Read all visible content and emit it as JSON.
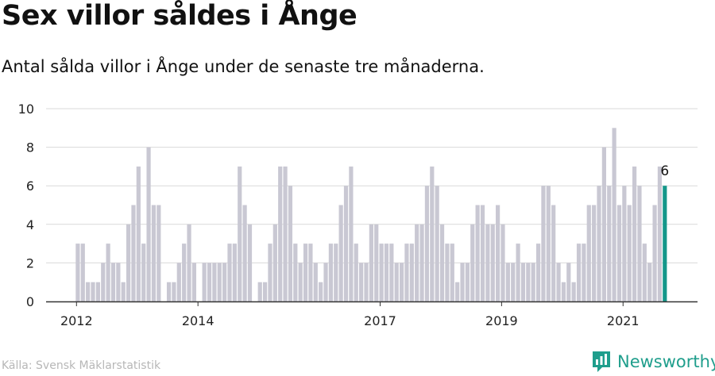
{
  "header": {
    "title": "Sex villor såldes i Ånge",
    "subtitle": "Antal sålda villor i Ånge under de senaste tre månaderna."
  },
  "footer": {
    "source": "Källa: Svensk Mäklarstatistik",
    "brand": "Newsworthy",
    "brand_icon": "newsworthy-logo-icon"
  },
  "colors": {
    "bar": "#c9c8d3",
    "highlight": "#14978a",
    "grid": "#d9d9d9",
    "axis": "#333333",
    "brand": "#1f9e8c"
  },
  "chart_data": {
    "type": "bar",
    "title": "Sex villor såldes i Ånge",
    "ylim": [
      0,
      10
    ],
    "y_ticks": [
      0,
      2,
      4,
      6,
      8,
      10
    ],
    "x_tick_labels": [
      {
        "label": "2012",
        "index": 0
      },
      {
        "label": "2014",
        "index": 24
      },
      {
        "label": "2017",
        "index": 60
      },
      {
        "label": "2019",
        "index": 84
      },
      {
        "label": "2021",
        "index": 108
      }
    ],
    "values": [
      3,
      3,
      1,
      1,
      1,
      2,
      3,
      2,
      2,
      1,
      4,
      5,
      7,
      3,
      8,
      5,
      5,
      0,
      1,
      1,
      2,
      3,
      4,
      2,
      0,
      2,
      2,
      2,
      2,
      2,
      3,
      3,
      7,
      5,
      4,
      0,
      1,
      1,
      3,
      4,
      7,
      7,
      6,
      3,
      2,
      3,
      3,
      2,
      1,
      2,
      3,
      3,
      5,
      6,
      7,
      3,
      2,
      2,
      4,
      4,
      3,
      3,
      3,
      2,
      2,
      3,
      3,
      4,
      4,
      6,
      7,
      6,
      4,
      3,
      3,
      1,
      2,
      2,
      4,
      5,
      5,
      4,
      4,
      5,
      4,
      2,
      2,
      3,
      2,
      2,
      2,
      3,
      6,
      6,
      5,
      2,
      1,
      2,
      1,
      3,
      3,
      5,
      5,
      6,
      8,
      6,
      9,
      5,
      6,
      5,
      7,
      6,
      3,
      2,
      5,
      7,
      6
    ],
    "highlight_index": 116,
    "highlight_label": "6",
    "grid": true
  }
}
